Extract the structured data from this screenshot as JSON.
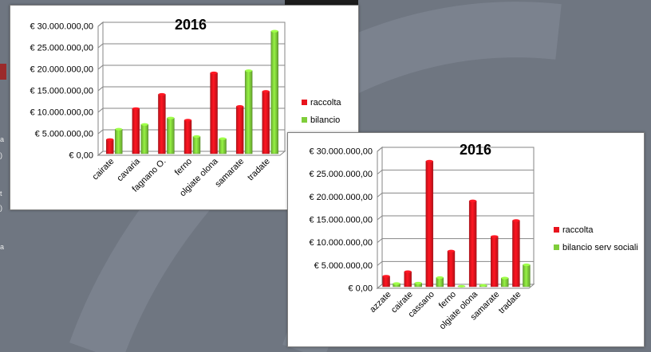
{
  "chart_data": [
    {
      "type": "bar",
      "title": "2016",
      "xlabel": "",
      "ylabel": "",
      "ylim": [
        0,
        30000000
      ],
      "yticks": [
        0,
        5000000,
        10000000,
        15000000,
        20000000,
        25000000,
        30000000
      ],
      "ytick_labels": [
        "€ 0,00",
        "€ 5.000.000,00",
        "€ 10.000.000,00",
        "€ 15.000.000,00",
        "€ 20.000.000,00",
        "€ 25.000.000,00",
        "€ 30.000.000,00"
      ],
      "categories": [
        "cairate",
        "cavaria",
        "fagnano O.",
        "ferno",
        "olgiate olona",
        "samarate",
        "tradate"
      ],
      "series": [
        {
          "name": "raccolta",
          "color": "#e8131d",
          "values": [
            3300000,
            10500000,
            13800000,
            7800000,
            18800000,
            11000000,
            14500000
          ]
        },
        {
          "name": "bilancio",
          "color": "#7fcd3a",
          "values": [
            5700000,
            6800000,
            8300000,
            4000000,
            3500000,
            19300000,
            28500000
          ]
        }
      ],
      "grid": true,
      "legend": "right"
    },
    {
      "type": "bar",
      "title": "2016",
      "xlabel": "",
      "ylabel": "",
      "ylim": [
        0,
        30000000
      ],
      "yticks": [
        0,
        5000000,
        10000000,
        15000000,
        20000000,
        25000000,
        30000000
      ],
      "ytick_labels": [
        "€ 0,00",
        "€ 5.000.000,00",
        "€ 10.000.000,00",
        "€ 15.000.000,00",
        "€ 20.000.000,00",
        "€ 25.000.000,00",
        "€ 30.000.000,00"
      ],
      "categories": [
        "azzate",
        "cairate",
        "cassano",
        "ferno",
        "olgiate olona",
        "samarate",
        "tradate"
      ],
      "series": [
        {
          "name": "raccolta",
          "color": "#e8131d",
          "values": [
            2300000,
            3300000,
            27500000,
            7800000,
            18800000,
            11000000,
            14500000
          ]
        },
        {
          "name": "bilancio serv sociali",
          "color": "#7fcd3a",
          "values": [
            700000,
            800000,
            2000000,
            100000,
            300000,
            1900000,
            4800000
          ]
        }
      ],
      "grid": true,
      "legend": "right"
    }
  ]
}
